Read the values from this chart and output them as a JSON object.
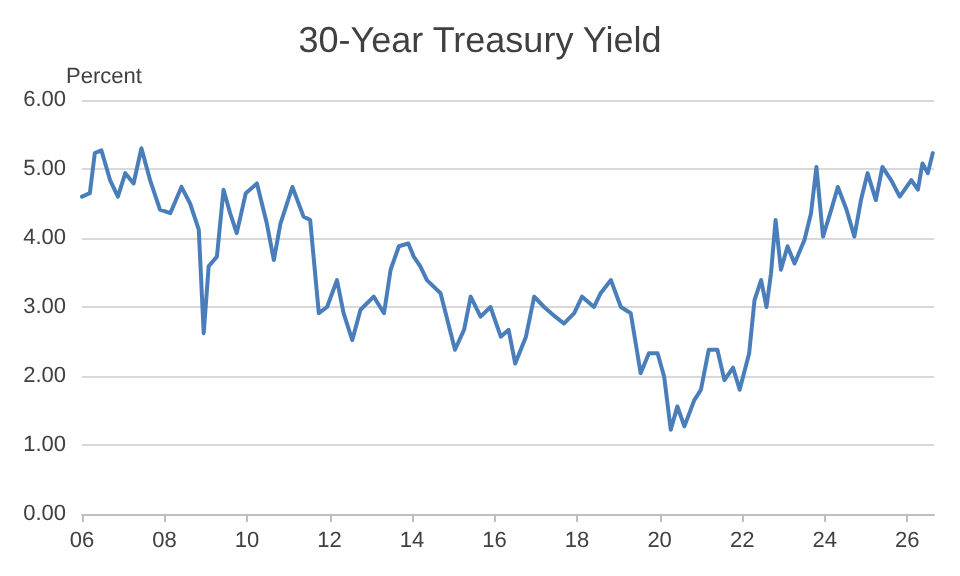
{
  "chart_data": {
    "type": "line",
    "title": "30-Year Treasury Yield",
    "ylabel": "Percent",
    "x": [
      2006.0,
      2006.19,
      2006.31,
      2006.47,
      2006.68,
      2006.87,
      2007.05,
      2007.25,
      2007.44,
      2007.65,
      2007.89,
      2008.14,
      2008.41,
      2008.62,
      2008.83,
      2008.95,
      2009.07,
      2009.27,
      2009.43,
      2009.59,
      2009.75,
      2009.97,
      2010.24,
      2010.48,
      2010.65,
      2010.81,
      2011.1,
      2011.37,
      2011.53,
      2011.74,
      2011.94,
      2012.18,
      2012.34,
      2012.55,
      2012.75,
      2013.07,
      2013.32,
      2013.48,
      2013.68,
      2013.91,
      2014.04,
      2014.2,
      2014.36,
      2014.69,
      2015.04,
      2015.26,
      2015.42,
      2015.66,
      2015.9,
      2016.15,
      2016.34,
      2016.5,
      2016.76,
      2016.96,
      2017.2,
      2017.47,
      2017.68,
      2017.93,
      2018.12,
      2018.41,
      2018.57,
      2018.82,
      2019.06,
      2019.3,
      2019.54,
      2019.74,
      2019.95,
      2020.11,
      2020.27,
      2020.43,
      2020.6,
      2020.84,
      2021.0,
      2021.19,
      2021.4,
      2021.57,
      2021.78,
      2021.94,
      2022.17,
      2022.3,
      2022.46,
      2022.59,
      2022.7,
      2022.81,
      2022.94,
      2023.1,
      2023.27,
      2023.51,
      2023.67,
      2023.8,
      2023.96,
      2024.16,
      2024.32,
      2024.53,
      2024.72,
      2024.88,
      2025.04,
      2025.24,
      2025.4,
      2025.61,
      2025.82,
      2026.1,
      2026.26,
      2026.37,
      2026.5,
      2026.62
    ],
    "series": [
      {
        "color": "#4a7ebb",
        "values": [
          4.6,
          4.65,
          5.23,
          5.27,
          4.84,
          4.6,
          4.94,
          4.79,
          5.3,
          4.84,
          4.41,
          4.36,
          4.74,
          4.5,
          4.12,
          2.62,
          3.59,
          3.73,
          4.7,
          4.36,
          4.07,
          4.65,
          4.79,
          4.21,
          3.68,
          4.21,
          4.74,
          4.31,
          4.26,
          2.91,
          3.0,
          3.39,
          2.91,
          2.52,
          2.96,
          3.15,
          2.91,
          3.54,
          3.88,
          3.92,
          3.73,
          3.59,
          3.39,
          3.2,
          2.38,
          2.67,
          3.15,
          2.86,
          3.0,
          2.57,
          2.67,
          2.18,
          2.57,
          3.15,
          3.0,
          2.86,
          2.76,
          2.91,
          3.15,
          3.0,
          3.2,
          3.39,
          3.0,
          2.91,
          2.04,
          2.33,
          2.33,
          1.99,
          1.22,
          1.56,
          1.27,
          1.65,
          1.8,
          2.38,
          2.38,
          1.94,
          2.12,
          1.8,
          2.33,
          3.1,
          3.39,
          3.0,
          3.49,
          4.26,
          3.54,
          3.88,
          3.63,
          3.97,
          4.36,
          5.03,
          4.02,
          4.41,
          4.74,
          4.41,
          4.02,
          4.55,
          4.94,
          4.55,
          5.03,
          4.84,
          4.6,
          4.84,
          4.7,
          5.08,
          4.94,
          5.23
        ]
      }
    ],
    "xlim": [
      2006,
      2026.65
    ],
    "xticks": [
      {
        "value": 2006,
        "label": "06"
      },
      {
        "value": 2008,
        "label": "08"
      },
      {
        "value": 2010,
        "label": "10"
      },
      {
        "value": 2012,
        "label": "12"
      },
      {
        "value": 2014,
        "label": "14"
      },
      {
        "value": 2016,
        "label": "16"
      },
      {
        "value": 2018,
        "label": "18"
      },
      {
        "value": 2020,
        "label": "20"
      },
      {
        "value": 2022,
        "label": "22"
      },
      {
        "value": 2024,
        "label": "24"
      },
      {
        "value": 2026,
        "label": "26"
      }
    ],
    "ylim": [
      0,
      6
    ],
    "yticks": [
      {
        "value": 0,
        "label": "0.00"
      },
      {
        "value": 1,
        "label": "1.00"
      },
      {
        "value": 2,
        "label": "2.00"
      },
      {
        "value": 3,
        "label": "3.00"
      },
      {
        "value": 4,
        "label": "4.00"
      },
      {
        "value": 5,
        "label": "5.00"
      },
      {
        "value": 6,
        "label": "6.00"
      }
    ],
    "grid": "y",
    "marker": "none",
    "line_style": "solid"
  }
}
